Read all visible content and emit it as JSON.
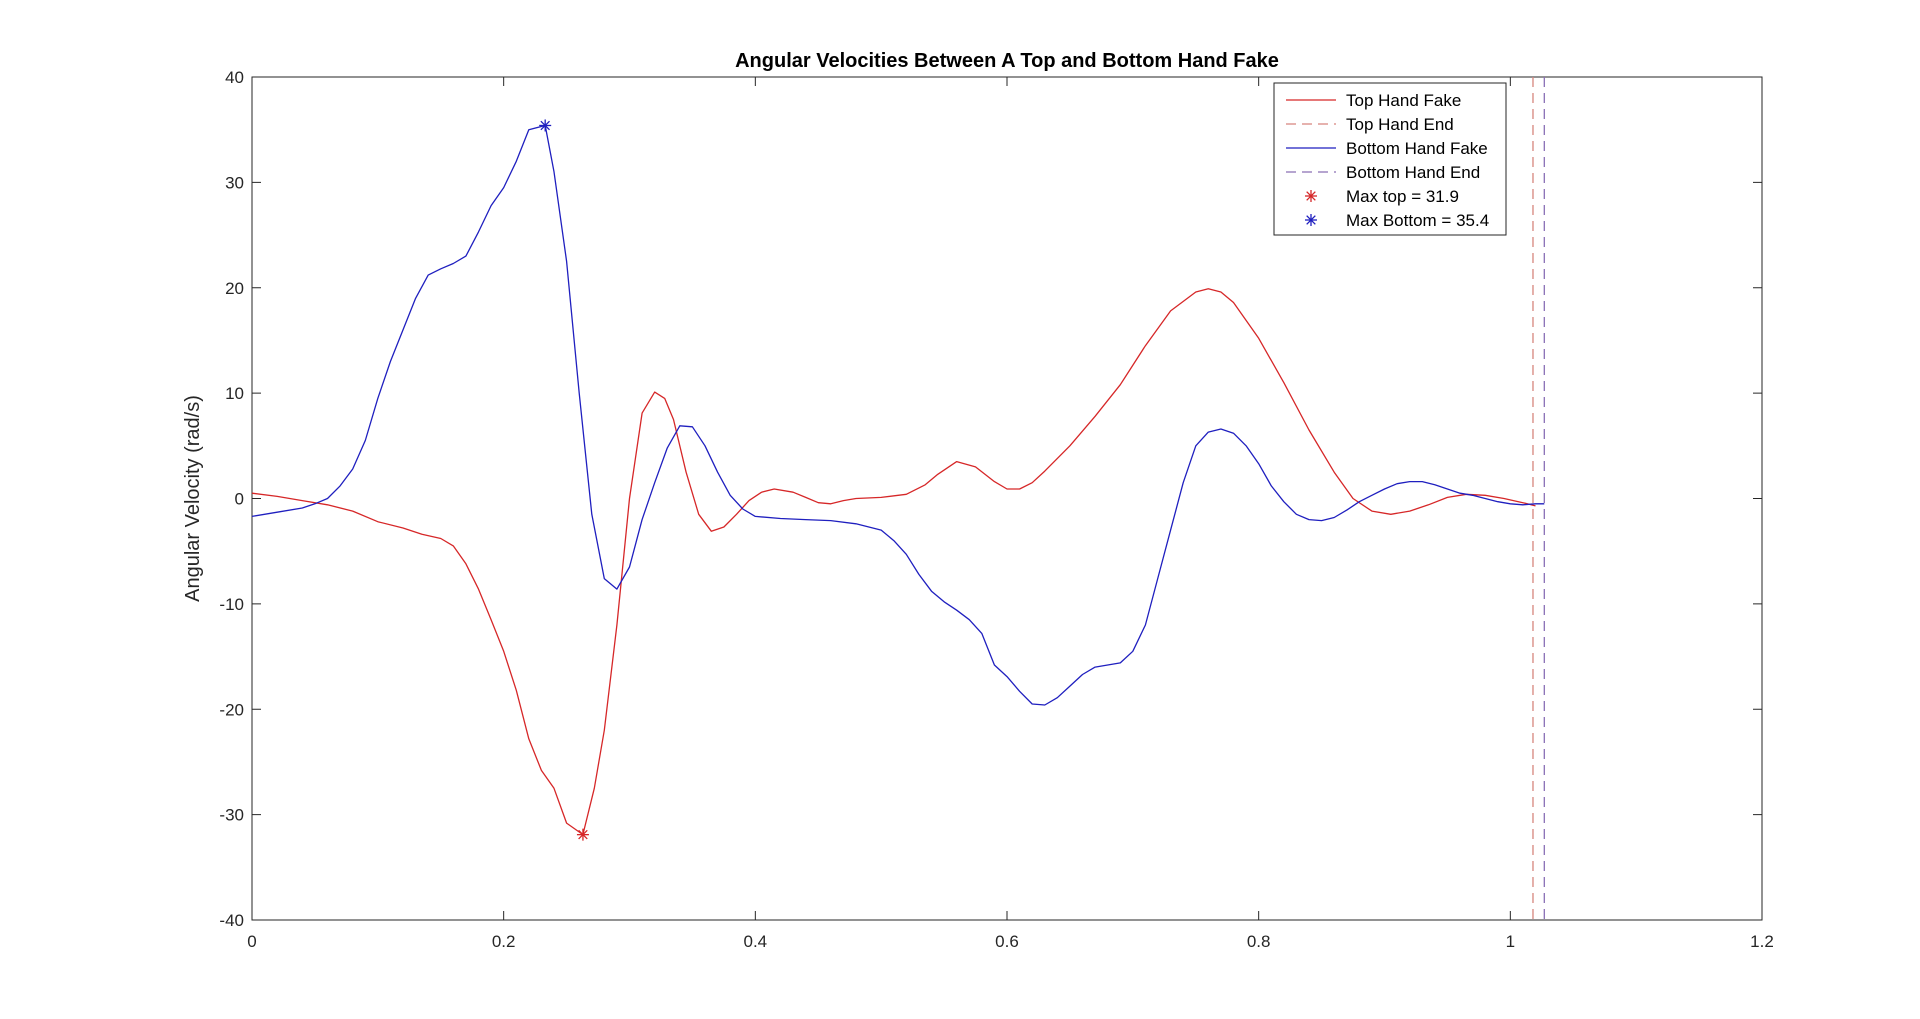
{
  "chart_data": {
    "type": "line",
    "title": "Angular Velocities Between A Top and Bottom Hand Fake",
    "xlabel": "",
    "ylabel": "Angular Velocity (rad/s)",
    "xlim": [
      0,
      1.2
    ],
    "ylim": [
      -40,
      40
    ],
    "xticks": [
      0,
      0.2,
      0.4,
      0.6,
      0.8,
      1,
      1.2
    ],
    "xtick_labels": [
      "0",
      "0.2",
      "0.4",
      "0.6",
      "0.8",
      "1",
      "1.2"
    ],
    "yticks": [
      -40,
      -30,
      -20,
      -10,
      0,
      10,
      20,
      30,
      40
    ],
    "ytick_labels": [
      "-40",
      "-30",
      "-20",
      "-10",
      "0",
      "10",
      "20",
      "30",
      "40"
    ],
    "grid": false,
    "legend_position": "top-right",
    "series": [
      {
        "name": "Top Hand Fake",
        "color": "#d62728",
        "style": "solid",
        "points": [
          [
            0,
            0.5
          ],
          [
            0.02,
            0.2
          ],
          [
            0.04,
            -0.2
          ],
          [
            0.06,
            -0.6
          ],
          [
            0.08,
            -1.2
          ],
          [
            0.1,
            -2.2
          ],
          [
            0.12,
            -2.8
          ],
          [
            0.135,
            -3.4
          ],
          [
            0.15,
            -3.8
          ],
          [
            0.16,
            -4.5
          ],
          [
            0.17,
            -6.2
          ],
          [
            0.18,
            -8.6
          ],
          [
            0.19,
            -11.5
          ],
          [
            0.2,
            -14.5
          ],
          [
            0.21,
            -18.2
          ],
          [
            0.22,
            -22.8
          ],
          [
            0.23,
            -25.8
          ],
          [
            0.24,
            -27.5
          ],
          [
            0.25,
            -30.8
          ],
          [
            0.263,
            -31.9
          ],
          [
            0.272,
            -27.5
          ],
          [
            0.28,
            -22
          ],
          [
            0.29,
            -12
          ],
          [
            0.3,
            0
          ],
          [
            0.31,
            8.1
          ],
          [
            0.32,
            10.1
          ],
          [
            0.328,
            9.5
          ],
          [
            0.335,
            7.5
          ],
          [
            0.345,
            2.5
          ],
          [
            0.355,
            -1.5
          ],
          [
            0.365,
            -3.1
          ],
          [
            0.375,
            -2.7
          ],
          [
            0.385,
            -1.5
          ],
          [
            0.395,
            -0.2
          ],
          [
            0.405,
            0.6
          ],
          [
            0.415,
            0.9
          ],
          [
            0.43,
            0.6
          ],
          [
            0.44,
            0.1
          ],
          [
            0.45,
            -0.4
          ],
          [
            0.46,
            -0.5
          ],
          [
            0.47,
            -0.2
          ],
          [
            0.48,
            0
          ],
          [
            0.5,
            0.1
          ],
          [
            0.52,
            0.4
          ],
          [
            0.535,
            1.3
          ],
          [
            0.545,
            2.3
          ],
          [
            0.56,
            3.5
          ],
          [
            0.575,
            3
          ],
          [
            0.59,
            1.6
          ],
          [
            0.6,
            0.9
          ],
          [
            0.61,
            0.9
          ],
          [
            0.62,
            1.5
          ],
          [
            0.63,
            2.6
          ],
          [
            0.65,
            5
          ],
          [
            0.67,
            7.8
          ],
          [
            0.69,
            10.8
          ],
          [
            0.71,
            14.5
          ],
          [
            0.73,
            17.8
          ],
          [
            0.75,
            19.6
          ],
          [
            0.76,
            19.9
          ],
          [
            0.77,
            19.6
          ],
          [
            0.78,
            18.6
          ],
          [
            0.8,
            15.2
          ],
          [
            0.82,
            11
          ],
          [
            0.84,
            6.5
          ],
          [
            0.86,
            2.5
          ],
          [
            0.875,
            0
          ],
          [
            0.89,
            -1.2
          ],
          [
            0.905,
            -1.5
          ],
          [
            0.92,
            -1.2
          ],
          [
            0.935,
            -0.6
          ],
          [
            0.95,
            0.1
          ],
          [
            0.965,
            0.4
          ],
          [
            0.98,
            0.3
          ],
          [
            0.995,
            0
          ],
          [
            1.01,
            -0.4
          ],
          [
            1.02,
            -0.7
          ]
        ]
      },
      {
        "name": "Top Hand End",
        "color": "#d6857e",
        "style": "dashed",
        "vline_x": 1.018
      },
      {
        "name": "Bottom Hand Fake",
        "color": "#1f1fbf",
        "style": "solid",
        "points": [
          [
            0,
            -1.7
          ],
          [
            0.02,
            -1.3
          ],
          [
            0.04,
            -0.9
          ],
          [
            0.05,
            -0.5
          ],
          [
            0.06,
            0
          ],
          [
            0.07,
            1.2
          ],
          [
            0.08,
            2.8
          ],
          [
            0.09,
            5.5
          ],
          [
            0.1,
            9.5
          ],
          [
            0.11,
            13
          ],
          [
            0.12,
            16
          ],
          [
            0.13,
            19
          ],
          [
            0.14,
            21.2
          ],
          [
            0.15,
            21.8
          ],
          [
            0.16,
            22.3
          ],
          [
            0.17,
            23
          ],
          [
            0.18,
            25.3
          ],
          [
            0.19,
            27.8
          ],
          [
            0.2,
            29.5
          ],
          [
            0.21,
            32
          ],
          [
            0.22,
            35
          ],
          [
            0.233,
            35.4
          ],
          [
            0.24,
            31
          ],
          [
            0.25,
            22.5
          ],
          [
            0.26,
            10
          ],
          [
            0.27,
            -1.5
          ],
          [
            0.28,
            -7.6
          ],
          [
            0.29,
            -8.6
          ],
          [
            0.3,
            -6.5
          ],
          [
            0.31,
            -2
          ],
          [
            0.32,
            1.5
          ],
          [
            0.33,
            4.8
          ],
          [
            0.34,
            6.9
          ],
          [
            0.35,
            6.8
          ],
          [
            0.36,
            5
          ],
          [
            0.37,
            2.5
          ],
          [
            0.38,
            0.3
          ],
          [
            0.39,
            -1
          ],
          [
            0.4,
            -1.7
          ],
          [
            0.42,
            -1.9
          ],
          [
            0.44,
            -2
          ],
          [
            0.46,
            -2.1
          ],
          [
            0.48,
            -2.4
          ],
          [
            0.5,
            -3
          ],
          [
            0.51,
            -4
          ],
          [
            0.52,
            -5.3
          ],
          [
            0.53,
            -7.2
          ],
          [
            0.54,
            -8.8
          ],
          [
            0.55,
            -9.8
          ],
          [
            0.56,
            -10.6
          ],
          [
            0.57,
            -11.5
          ],
          [
            0.58,
            -12.8
          ],
          [
            0.59,
            -15.8
          ],
          [
            0.6,
            -16.9
          ],
          [
            0.61,
            -18.3
          ],
          [
            0.62,
            -19.5
          ],
          [
            0.63,
            -19.6
          ],
          [
            0.64,
            -18.9
          ],
          [
            0.65,
            -17.8
          ],
          [
            0.66,
            -16.7
          ],
          [
            0.67,
            -16
          ],
          [
            0.68,
            -15.8
          ],
          [
            0.69,
            -15.6
          ],
          [
            0.7,
            -14.5
          ],
          [
            0.71,
            -12
          ],
          [
            0.72,
            -7.5
          ],
          [
            0.73,
            -3
          ],
          [
            0.74,
            1.5
          ],
          [
            0.75,
            5
          ],
          [
            0.76,
            6.3
          ],
          [
            0.77,
            6.6
          ],
          [
            0.78,
            6.2
          ],
          [
            0.79,
            5
          ],
          [
            0.8,
            3.3
          ],
          [
            0.81,
            1.2
          ],
          [
            0.82,
            -0.3
          ],
          [
            0.83,
            -1.5
          ],
          [
            0.84,
            -2
          ],
          [
            0.85,
            -2.1
          ],
          [
            0.86,
            -1.8
          ],
          [
            0.87,
            -1.1
          ],
          [
            0.88,
            -0.3
          ],
          [
            0.89,
            0.3
          ],
          [
            0.9,
            0.9
          ],
          [
            0.91,
            1.4
          ],
          [
            0.92,
            1.6
          ],
          [
            0.93,
            1.6
          ],
          [
            0.94,
            1.3
          ],
          [
            0.95,
            0.9
          ],
          [
            0.96,
            0.5
          ],
          [
            0.97,
            0.3
          ],
          [
            0.98,
            0
          ],
          [
            0.99,
            -0.3
          ],
          [
            1.0,
            -0.5
          ],
          [
            1.01,
            -0.6
          ],
          [
            1.02,
            -0.5
          ],
          [
            1.027,
            -0.5
          ]
        ]
      },
      {
        "name": "Bottom Hand End",
        "color": "#8a6fb5",
        "style": "dashed",
        "vline_x": 1.027
      },
      {
        "name": "Max top = 31.9",
        "color": "#d62728",
        "style": "marker",
        "points": [
          [
            0.263,
            -31.9
          ]
        ]
      },
      {
        "name": "Max Bottom = 35.4",
        "color": "#1f1fbf",
        "style": "marker",
        "points": [
          [
            0.233,
            35.4
          ]
        ]
      }
    ]
  }
}
